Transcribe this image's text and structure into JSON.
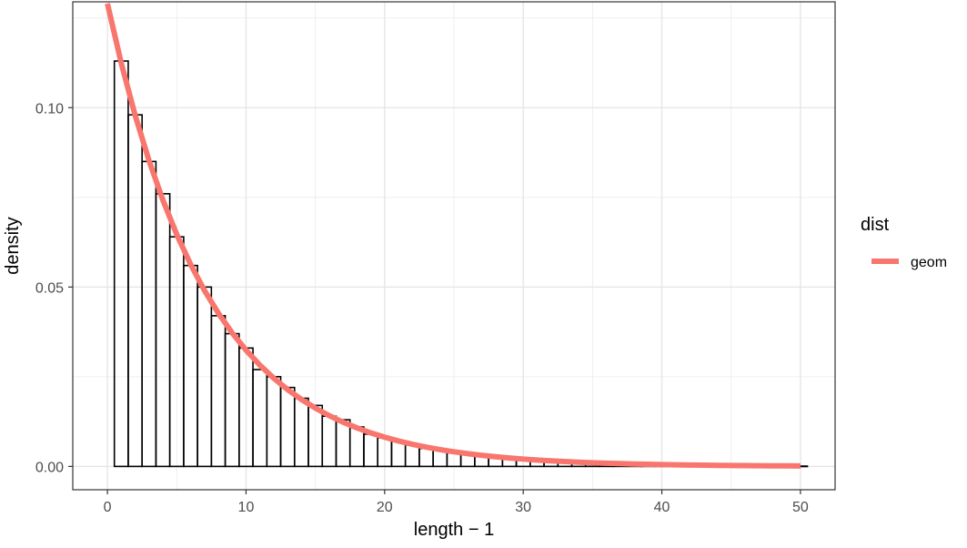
{
  "chart_data": {
    "type": "bar",
    "xlabel": "length − 1",
    "ylabel": "density",
    "xlim": [
      -2.5,
      52.5
    ],
    "ylim": [
      -0.0065,
      0.1295
    ],
    "x_ticks": [
      0,
      10,
      20,
      30,
      40,
      50
    ],
    "y_ticks": [
      0.0,
      0.05,
      0.1
    ],
    "x_tick_labels": [
      "0",
      "10",
      "20",
      "30",
      "40",
      "50"
    ],
    "y_tick_labels": [
      "0.00",
      "0.05",
      "0.10"
    ],
    "grid": true,
    "bins": {
      "x": [
        1,
        2,
        3,
        4,
        5,
        6,
        7,
        8,
        9,
        10,
        11,
        12,
        13,
        14,
        15,
        16,
        17,
        18,
        19,
        20,
        21,
        22,
        23,
        24,
        25,
        26,
        27,
        28,
        29,
        30,
        31,
        32,
        33,
        34,
        35,
        36,
        37,
        38,
        39,
        40,
        41,
        42,
        43,
        44,
        45,
        46,
        47,
        48,
        49,
        50
      ],
      "density": [
        0.113,
        0.098,
        0.085,
        0.076,
        0.064,
        0.056,
        0.05,
        0.042,
        0.037,
        0.033,
        0.027,
        0.025,
        0.022,
        0.019,
        0.017,
        0.014,
        0.013,
        0.011,
        0.009,
        0.008,
        0.007,
        0.006,
        0.005,
        0.0045,
        0.0038,
        0.0033,
        0.0028,
        0.0024,
        0.002,
        0.0017,
        0.0015,
        0.0013,
        0.0011,
        0.0009,
        0.0008,
        0.0007,
        0.0006,
        0.0005,
        0.00045,
        0.0004,
        0.00035,
        0.0003,
        0.00025,
        0.0002,
        0.00018,
        0.00015,
        0.00013,
        0.00011,
        0.0001,
        9e-05
      ]
    },
    "series": [
      {
        "name": "geom",
        "type": "line",
        "color": "#f8766d",
        "p": 0.129
      }
    ],
    "legend": {
      "title": "dist",
      "position": "right",
      "entries": [
        {
          "label": "geom",
          "color": "#f8766d"
        }
      ]
    }
  }
}
